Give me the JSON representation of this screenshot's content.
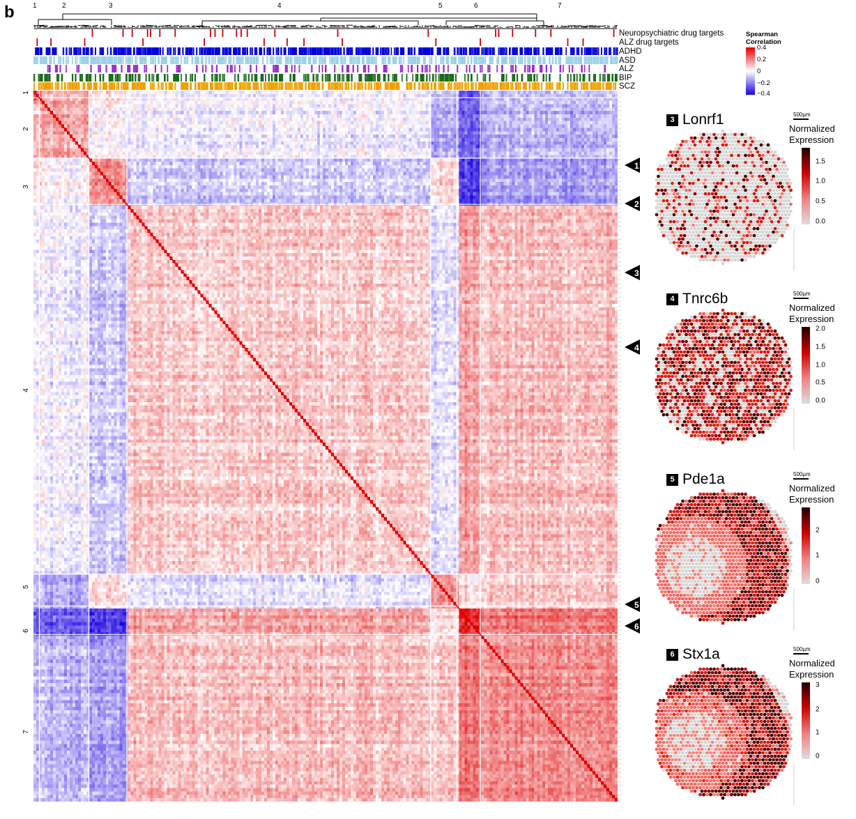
{
  "panel_label": "b",
  "chart_data": {
    "type": "heatmap",
    "title": "",
    "clusters": [
      "1",
      "2",
      "3",
      "4",
      "5",
      "6",
      "7"
    ],
    "cluster_boundaries_fraction": [
      0,
      0.01,
      0.095,
      0.16,
      0.68,
      0.725,
      0.765,
      1.0
    ],
    "annotation_tracks": [
      {
        "name": "Neuropsychiatric drug targets",
        "color": "#cc0000"
      },
      {
        "name": "ALZ drug targets",
        "color": "#cc0000"
      },
      {
        "name": "ADHD",
        "color": "#0000dd"
      },
      {
        "name": "ASD",
        "color": "#9ad3e6"
      },
      {
        "name": "ALZ",
        "color": "#9b2fd0"
      },
      {
        "name": "BIP",
        "color": "#1a6b1a"
      },
      {
        "name": "SCZ",
        "color": "#f0a000"
      }
    ],
    "color_scale": {
      "title": "Spearman Correlation",
      "min": -0.4,
      "max": 0.4,
      "ticks": [
        "0.4",
        "0.2",
        "0",
        "−0.2",
        "−0.4"
      ],
      "low_color": "#1a00e0",
      "mid_color": "#ffffff",
      "high_color": "#e00000"
    },
    "marker_arrows": [
      "1",
      "2",
      "3",
      "4",
      "5",
      "6"
    ]
  },
  "gene_panels": [
    {
      "number": "3",
      "gene": "Lonrf1",
      "scale": "500µm",
      "legend_title_1": "Normalized",
      "legend_title_2": "Expression",
      "ticks": [
        "1.5",
        "1.0",
        "0.5",
        "0.0"
      ],
      "max": 1.9,
      "pattern": "sparse"
    },
    {
      "number": "4",
      "gene": "Tnrc6b",
      "scale": "500µm",
      "legend_title_1": "Normalized",
      "legend_title_2": "Expression",
      "ticks": [
        "2.0",
        "1.5",
        "1.0",
        "0.5",
        "0.0"
      ],
      "max": 2.1,
      "pattern": "dense"
    },
    {
      "number": "5",
      "gene": "Pde1a",
      "scale": "500µm",
      "legend_title_1": "Normalized",
      "legend_title_2": "Expression",
      "ticks": [
        "2",
        "1",
        "0"
      ],
      "max": 2.9,
      "pattern": "cortex"
    },
    {
      "number": "6",
      "gene": "Stx1a",
      "scale": "500µm",
      "legend_title_1": "Normalized",
      "legend_title_2": "Expression",
      "ticks": [
        "3",
        "2",
        "1",
        "0"
      ],
      "max": 3.2,
      "pattern": "cortex-strong"
    }
  ]
}
